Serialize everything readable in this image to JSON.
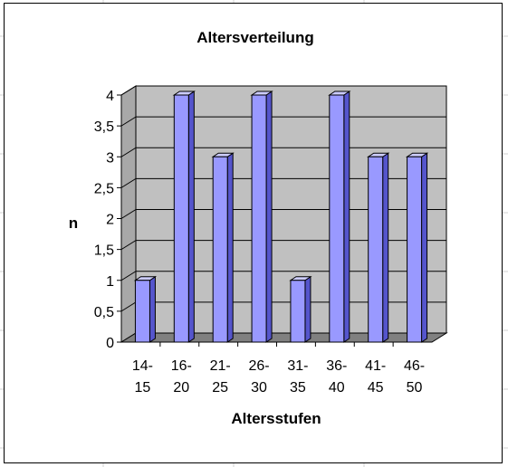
{
  "chart_data": {
    "type": "bar",
    "title": "Altersverteilung",
    "xlabel": "Altersstufen",
    "ylabel": "n",
    "categories": [
      [
        "14-",
        "15"
      ],
      [
        "16-",
        "20"
      ],
      [
        "21-",
        "25"
      ],
      [
        "26-",
        "30"
      ],
      [
        "31-",
        "35"
      ],
      [
        "36-",
        "40"
      ],
      [
        "41-",
        "45"
      ],
      [
        "46-",
        "50"
      ]
    ],
    "values": [
      1,
      4,
      3,
      4,
      1,
      4,
      3,
      3
    ],
    "ylim": [
      0,
      4
    ],
    "yticks": [
      "0",
      "0,5",
      "1",
      "1,5",
      "2",
      "2,5",
      "3",
      "3,5",
      "4"
    ],
    "grid": true,
    "style": "3d-column",
    "colors": {
      "bar_front": "#9999ff",
      "bar_side": "#5555cc",
      "bar_top": "#ccccff",
      "wall": "#c0c0c0",
      "floor": "#808080"
    }
  }
}
